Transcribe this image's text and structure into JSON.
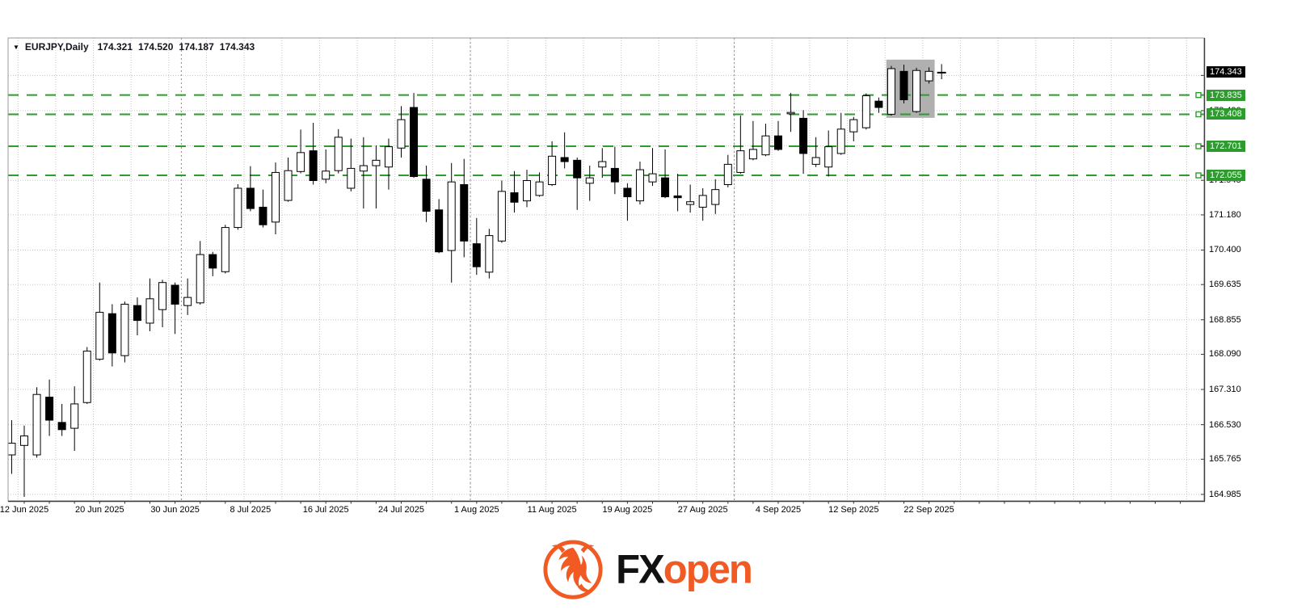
{
  "window": {
    "symbol_period": "EURJPY,Daily",
    "ohlc": {
      "open": "174.321",
      "high": "174.520",
      "low": "174.187",
      "close": "174.343"
    }
  },
  "chart_data": {
    "type": "candlestick",
    "title": "EURJPY,Daily",
    "symbol": "EURJPY",
    "timeframe": "Daily",
    "ylim": [
      164.84,
      175.1
    ],
    "grid": true,
    "y_ticks": [
      "174.270",
      "173.490",
      "172.710",
      "171.945",
      "171.180",
      "170.400",
      "169.635",
      "168.855",
      "168.090",
      "167.310",
      "166.530",
      "165.765",
      "164.985"
    ],
    "x_tick_labels": [
      {
        "label": "12 Jun 2025",
        "index": 1
      },
      {
        "label": "20 Jun 2025",
        "index": 7
      },
      {
        "label": "30 Jun 2025",
        "index": 13
      },
      {
        "label": "8 Jul 2025",
        "index": 19
      },
      {
        "label": "16 Jul 2025",
        "index": 25
      },
      {
        "label": "24 Jul 2025",
        "index": 31
      },
      {
        "label": "1 Aug 2025",
        "index": 37
      },
      {
        "label": "11 Aug 2025",
        "index": 43
      },
      {
        "label": "19 Aug 2025",
        "index": 49
      },
      {
        "label": "27 Aug 2025",
        "index": 55
      },
      {
        "label": "4 Sep 2025",
        "index": 61
      },
      {
        "label": "12 Sep 2025",
        "index": 67
      },
      {
        "label": "22 Sep 2025",
        "index": 73
      }
    ],
    "month_separators_before_index": [
      14,
      37,
      58
    ],
    "current_price": {
      "value": 174.343,
      "label": "174.343"
    },
    "horizontal_lines": [
      {
        "value": 173.835,
        "label": "173.835"
      },
      {
        "value": 173.408,
        "label": "173.408"
      },
      {
        "value": 172.701,
        "label": "172.701"
      },
      {
        "value": 172.055,
        "label": "172.055"
      }
    ],
    "highlight_box": {
      "from_index": 69.6,
      "to_index": 73.45,
      "price_top": 174.62,
      "price_bottom": 173.33
    },
    "candles_columns": [
      "date",
      "open",
      "high",
      "low",
      "close"
    ],
    "candles": [
      [
        "11 Jun 2025",
        165.86,
        166.63,
        165.44,
        166.12
      ],
      [
        "12 Jun 2025",
        166.07,
        166.51,
        164.93,
        166.28
      ],
      [
        "13 Jun 2025",
        165.86,
        167.36,
        165.8,
        167.2
      ],
      [
        "16 Jun 2025",
        167.14,
        167.53,
        166.28,
        166.63
      ],
      [
        "17 Jun 2025",
        166.58,
        166.99,
        166.28,
        166.42
      ],
      [
        "18 Jun 2025",
        166.45,
        167.38,
        165.95,
        166.99
      ],
      [
        "19 Jun 2025",
        167.02,
        168.25,
        166.99,
        168.16
      ],
      [
        "20 Jun 2025",
        167.98,
        169.68,
        167.95,
        169.02
      ],
      [
        "23 Jun 2025",
        168.99,
        169.2,
        167.82,
        168.12
      ],
      [
        "24 Jun 2025",
        168.06,
        169.26,
        167.91,
        169.2
      ],
      [
        "25 Jun 2025",
        169.17,
        169.35,
        168.51,
        168.84
      ],
      [
        "26 Jun 2025",
        168.78,
        169.77,
        168.6,
        169.32
      ],
      [
        "27 Jun 2025",
        169.08,
        169.74,
        168.69,
        169.68
      ],
      [
        "30 Jun 2025",
        169.62,
        169.68,
        168.54,
        169.2
      ],
      [
        "1 Jul 2025",
        169.17,
        169.77,
        168.96,
        169.35
      ],
      [
        "2 Jul 2025",
        169.23,
        170.6,
        169.19,
        170.3
      ],
      [
        "3 Jul 2025",
        170.3,
        170.36,
        169.82,
        170.0
      ],
      [
        "4 Jul 2025",
        169.92,
        170.96,
        169.88,
        170.9
      ],
      [
        "7 Jul 2025",
        170.9,
        171.86,
        170.85,
        171.77
      ],
      [
        "8 Jul 2025",
        171.77,
        172.26,
        171.26,
        171.32
      ],
      [
        "9 Jul 2025",
        171.35,
        171.74,
        170.9,
        170.96
      ],
      [
        "10 Jul 2025",
        171.02,
        172.34,
        170.75,
        172.12
      ],
      [
        "11 Jul 2025",
        171.5,
        172.45,
        171.47,
        172.16
      ],
      [
        "14 Jul 2025",
        172.14,
        173.07,
        172.1,
        172.56
      ],
      [
        "15 Jul 2025",
        172.6,
        173.22,
        171.85,
        171.94
      ],
      [
        "16 Jul 2025",
        171.97,
        172.63,
        171.88,
        172.15
      ],
      [
        "17 Jul 2025",
        172.16,
        173.08,
        172.1,
        172.9
      ],
      [
        "18 Jul 2025",
        171.77,
        172.87,
        171.7,
        172.21
      ],
      [
        "21 Jul 2025",
        172.15,
        172.9,
        171.32,
        172.27
      ],
      [
        "22 Jul 2025",
        172.27,
        172.72,
        171.32,
        172.39
      ],
      [
        "23 Jul 2025",
        172.24,
        172.87,
        171.74,
        172.69
      ],
      [
        "24 Jul 2025",
        172.66,
        173.59,
        172.45,
        173.29
      ],
      [
        "25 Jul 2025",
        173.56,
        173.88,
        172.0,
        172.03
      ],
      [
        "28 Jul 2025",
        171.97,
        172.27,
        171.02,
        171.26
      ],
      [
        "29 Jul 2025",
        171.29,
        171.53,
        170.33,
        170.36
      ],
      [
        "30 Jul 2025",
        170.39,
        172.33,
        169.68,
        171.91
      ],
      [
        "31 Jul 2025",
        171.85,
        172.42,
        170.24,
        170.6
      ],
      [
        "1 Aug 2025",
        170.54,
        171.11,
        169.85,
        170.03
      ],
      [
        "4 Aug 2025",
        169.91,
        170.87,
        169.77,
        170.72
      ],
      [
        "5 Aug 2025",
        170.6,
        171.94,
        170.56,
        171.7
      ],
      [
        "6 Aug 2025",
        171.67,
        172.15,
        171.23,
        171.46
      ],
      [
        "7 Aug 2025",
        171.49,
        172.18,
        171.35,
        171.94
      ],
      [
        "8 Aug 2025",
        171.61,
        172.12,
        171.58,
        171.91
      ],
      [
        "11 Aug 2025",
        171.85,
        172.81,
        171.82,
        172.48
      ],
      [
        "12 Aug 2025",
        172.45,
        173.01,
        172.21,
        172.36
      ],
      [
        "13 Aug 2025",
        172.39,
        172.45,
        171.29,
        172.0
      ],
      [
        "14 Aug 2025",
        171.88,
        172.27,
        171.49,
        172.0
      ],
      [
        "15 Aug 2025",
        172.24,
        172.66,
        172.0,
        172.36
      ],
      [
        "18 Aug 2025",
        172.21,
        172.69,
        171.64,
        171.91
      ],
      [
        "19 Aug 2025",
        171.77,
        171.88,
        171.05,
        171.58
      ],
      [
        "20 Aug 2025",
        171.49,
        172.36,
        171.41,
        172.18
      ],
      [
        "21 Aug 2025",
        171.91,
        172.66,
        171.82,
        172.09
      ],
      [
        "22 Aug 2025",
        172.0,
        172.63,
        171.55,
        171.58
      ],
      [
        "25 Aug 2025",
        171.6,
        172.09,
        171.26,
        171.56
      ],
      [
        "26 Aug 2025",
        171.41,
        171.85,
        171.23,
        171.47
      ],
      [
        "27 Aug 2025",
        171.35,
        171.77,
        171.05,
        171.61
      ],
      [
        "28 Aug 2025",
        171.41,
        171.97,
        171.2,
        171.74
      ],
      [
        "29 Aug 2025",
        171.85,
        172.51,
        171.79,
        172.3
      ],
      [
        "1 Sep 2025",
        172.12,
        173.38,
        172.09,
        172.6
      ],
      [
        "2 Sep 2025",
        172.42,
        173.26,
        172.39,
        172.63
      ],
      [
        "3 Sep 2025",
        172.51,
        173.2,
        172.48,
        172.93
      ],
      [
        "4 Sep 2025",
        172.93,
        173.26,
        172.6,
        172.63
      ],
      [
        "5 Sep 2025",
        173.42,
        173.88,
        173.02,
        173.45
      ],
      [
        "8 Sep 2025",
        173.32,
        173.5,
        172.09,
        172.54
      ],
      [
        "9 Sep 2025",
        172.3,
        172.9,
        172.24,
        172.45
      ],
      [
        "10 Sep 2025",
        172.24,
        173.05,
        172.03,
        172.69
      ],
      [
        "11 Sep 2025",
        172.54,
        173.44,
        172.51,
        173.08
      ],
      [
        "12 Sep 2025",
        173.02,
        173.35,
        172.81,
        173.29
      ],
      [
        "15 Sep 2025",
        173.11,
        173.87,
        173.07,
        173.82
      ],
      [
        "16 Sep 2025",
        173.7,
        173.78,
        173.44,
        173.56
      ],
      [
        "17 Sep 2025",
        173.41,
        174.48,
        173.38,
        174.42
      ],
      [
        "18 Sep 2025",
        174.36,
        174.51,
        173.65,
        173.73
      ],
      [
        "19 Sep 2025",
        173.47,
        174.44,
        173.44,
        174.38
      ],
      [
        "22 Sep 2025",
        174.15,
        174.45,
        174.09,
        174.36
      ],
      [
        "23 Sep 2025",
        174.321,
        174.52,
        174.187,
        174.343
      ]
    ]
  },
  "branding": {
    "fx": "FX",
    "open": "open"
  },
  "colors": {
    "bull": "#ffffff",
    "bear": "#000000",
    "outline": "#000000",
    "grid": "#c4c4c4",
    "month_separator": "#8a8a8a",
    "green_line": "#2E9B2E",
    "current_price_label_bg": "#000000",
    "sr_label_bg": "#2E9B2E",
    "highlight_box": "#b0b0b0",
    "brand_orange": "#F15A22",
    "text": "#111111"
  }
}
